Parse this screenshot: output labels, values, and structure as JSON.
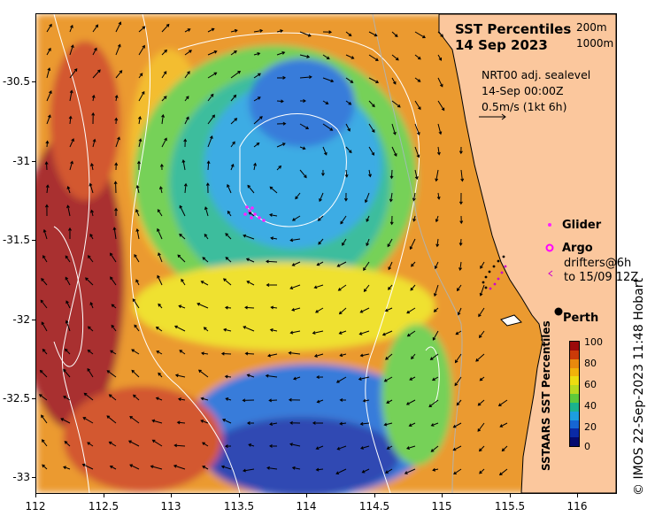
{
  "title": {
    "line1": "SST Percentiles",
    "line2": "14 Sep 2023"
  },
  "depth_legend": {
    "shallow": "200m",
    "deep": "1000m"
  },
  "current_info": {
    "line1": "NRT00 adj. sealevel",
    "line2": "14-Sep 00:00Z",
    "line3": "0.5m/s (1kt 6h)"
  },
  "symbols": {
    "glider": "Glider",
    "argo": "Argo",
    "drifters_line1": "drifters@6h",
    "drifters_line2": "to 15/09 12Z"
  },
  "city": "Perth",
  "axes": {
    "lat_ticks": [
      "-30.5",
      "-31",
      "-31.5",
      "-32",
      "-32.5",
      "-33"
    ],
    "lon_ticks": [
      "112",
      "112.5",
      "113",
      "113.5",
      "114",
      "114.5",
      "115",
      "115.5",
      "116"
    ]
  },
  "colorbar": {
    "title": "SSTAARS SST Percentiles",
    "ticks": [
      "100",
      "80",
      "60",
      "40",
      "20",
      "0"
    ],
    "colors": [
      "#9b0a0a",
      "#cc3a08",
      "#e8890d",
      "#f2b20a",
      "#eddc10",
      "#b9d91f",
      "#5ec93b",
      "#1bb28d",
      "#1d9ee0",
      "#1666d4",
      "#0a2aa6",
      "#050a6e"
    ]
  },
  "colors": {
    "land": "#fbc79d",
    "coast": "#000000",
    "contour": "#ffffff",
    "glider": "#ff22ff",
    "argo": "#ff00ff",
    "drifter": "#cc00cc"
  },
  "credit": "© IMOS 22-Sep-2023 11:48 Hobart"
}
